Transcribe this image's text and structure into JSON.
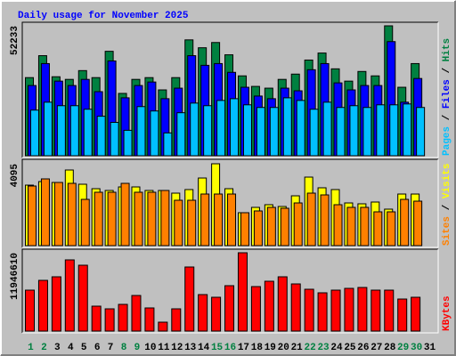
{
  "chart_data": [
    {
      "type": "bar",
      "title": "Daily usage for November 2025",
      "ylim": [
        0,
        52233
      ],
      "yticks": [
        52233
      ],
      "ylabel_separator": " / ",
      "series": [
        {
          "name": "Hits",
          "color": "#008040",
          "values": [
            31410,
            40230,
            31760,
            30700,
            34230,
            31410,
            41990,
            25060,
            30700,
            31410,
            26470,
            31410,
            46580,
            43410,
            45520,
            40580,
            32110,
            27880,
            27170,
            30700,
            32820,
            38470,
            41290,
            34940,
            30000,
            33880,
            32110,
            52233,
            27530,
            37050,
            null
          ]
        },
        {
          "name": "Files",
          "color": "#0000ff",
          "values": [
            28230,
            37050,
            30000,
            28230,
            30700,
            25760,
            38110,
            23290,
            28230,
            29640,
            22940,
            27170,
            40230,
            36350,
            37050,
            33530,
            27530,
            24000,
            22940,
            27170,
            26110,
            34580,
            37050,
            29290,
            26470,
            28230,
            28230,
            45880,
            21530,
            31060,
            null
          ]
        },
        {
          "name": "Pages",
          "color": "#00c0ff",
          "values": [
            18350,
            21530,
            20120,
            20120,
            18700,
            15880,
            13410,
            10230,
            19760,
            18000,
            9180,
            17290,
            21170,
            20120,
            22230,
            22940,
            20470,
            19410,
            19410,
            23290,
            22230,
            18700,
            21530,
            19410,
            20120,
            19410,
            20470,
            20470,
            20820,
            19410,
            null
          ]
        }
      ]
    },
    {
      "type": "bar",
      "ylim": [
        0,
        4095
      ],
      "yticks": [
        4095
      ],
      "ylabel_separator": " / ",
      "series": [
        {
          "name": "Visits",
          "color": "#ffff00",
          "values": [
            3026,
            3204,
            3160,
            3783,
            3071,
            2848,
            2759,
            2937,
            2937,
            2759,
            2759,
            2626,
            2804,
            3382,
            4095,
            2848,
            1647,
            1914,
            2047,
            1958,
            2492,
            3427,
            2893,
            2804,
            2136,
            2092,
            2181,
            1825,
            2581,
            2581,
            null
          ]
        },
        {
          "name": "Sites",
          "color": "#ff8000",
          "values": [
            2982,
            3338,
            3160,
            3115,
            2314,
            2670,
            2670,
            3115,
            2670,
            2670,
            2759,
            2270,
            2270,
            2581,
            2581,
            2581,
            1647,
            1736,
            1914,
            1869,
            2136,
            2626,
            2537,
            2047,
            1914,
            1914,
            1691,
            1691,
            2314,
            2225,
            null
          ]
        }
      ]
    },
    {
      "type": "bar",
      "ylim": [
        0,
        11946610
      ],
      "yticks": [
        11946610
      ],
      "categories": [
        "1",
        "2",
        "3",
        "4",
        "5",
        "6",
        "7",
        "8",
        "9",
        "10",
        "11",
        "12",
        "13",
        "14",
        "15",
        "16",
        "17",
        "18",
        "19",
        "20",
        "21",
        "22",
        "23",
        "24",
        "25",
        "26",
        "27",
        "28",
        "29",
        "30",
        "31"
      ],
      "category_colors": [
        "#008040",
        "#008040",
        "#000000",
        "#000000",
        "#000000",
        "#000000",
        "#000000",
        "#008040",
        "#008040",
        "#000000",
        "#000000",
        "#000000",
        "#000000",
        "#000000",
        "#008040",
        "#008040",
        "#000000",
        "#000000",
        "#000000",
        "#000000",
        "#000000",
        "#008040",
        "#008040",
        "#000000",
        "#000000",
        "#000000",
        "#000000",
        "#000000",
        "#008040",
        "#008040",
        "#000000"
      ],
      "series": [
        {
          "name": "KBytes",
          "color": "#ff0000",
          "values": [
            6245000,
            7738000,
            8281000,
            10861000,
            10046000,
            3801000,
            3394000,
            4073000,
            5430000,
            3530000,
            1358000,
            3394000,
            9775000,
            5566000,
            5159000,
            6924000,
            11946610,
            6788000,
            7602000,
            8281000,
            7195000,
            6381000,
            5838000,
            6245000,
            6516000,
            6652000,
            6245000,
            6245000,
            4887000,
            5159000,
            null
          ]
        }
      ]
    }
  ]
}
